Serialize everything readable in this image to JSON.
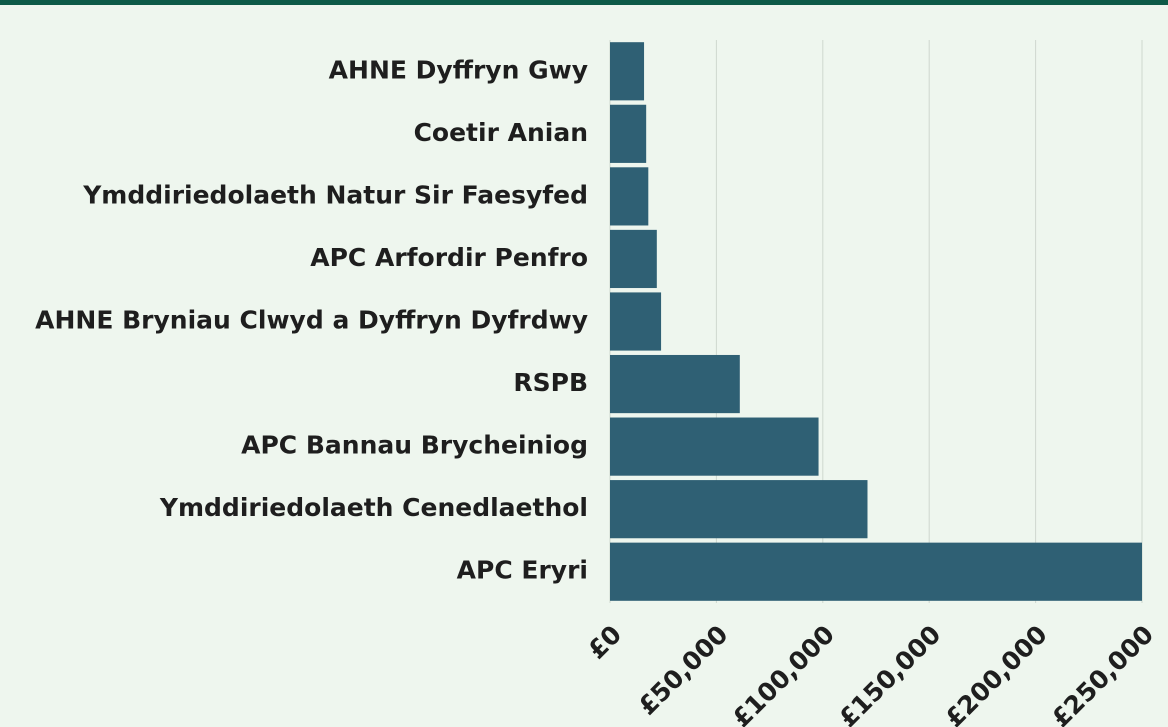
{
  "chart_data": {
    "type": "barh",
    "categories": [
      "AHNE Dyffryn Gwy",
      "Coetir Anian",
      "Ymddiriedolaeth Natur Sir Faesyfed",
      "APC Arfordir Penfro",
      "AHNE Bryniau Clwyd a Dyffryn Dyfrdwy",
      "RSPB",
      "APC Bannau Brycheiniog",
      "Ymddiriedolaeth Cenedlaethol",
      "APC Eryri"
    ],
    "values": [
      16000,
      17000,
      18000,
      22000,
      24000,
      61000,
      98000,
      121000,
      250000
    ],
    "color": "#2f6074",
    "xlim": [
      0,
      250000
    ],
    "xticks": [
      {
        "value": 0,
        "label": "£0"
      },
      {
        "value": 50000,
        "label": "£50,000"
      },
      {
        "value": 100000,
        "label": "£100,000"
      },
      {
        "value": 150000,
        "label": "£150,000"
      },
      {
        "value": 200000,
        "label": "£200,000"
      },
      {
        "value": 250000,
        "label": "£250,000"
      }
    ],
    "grid": true
  }
}
